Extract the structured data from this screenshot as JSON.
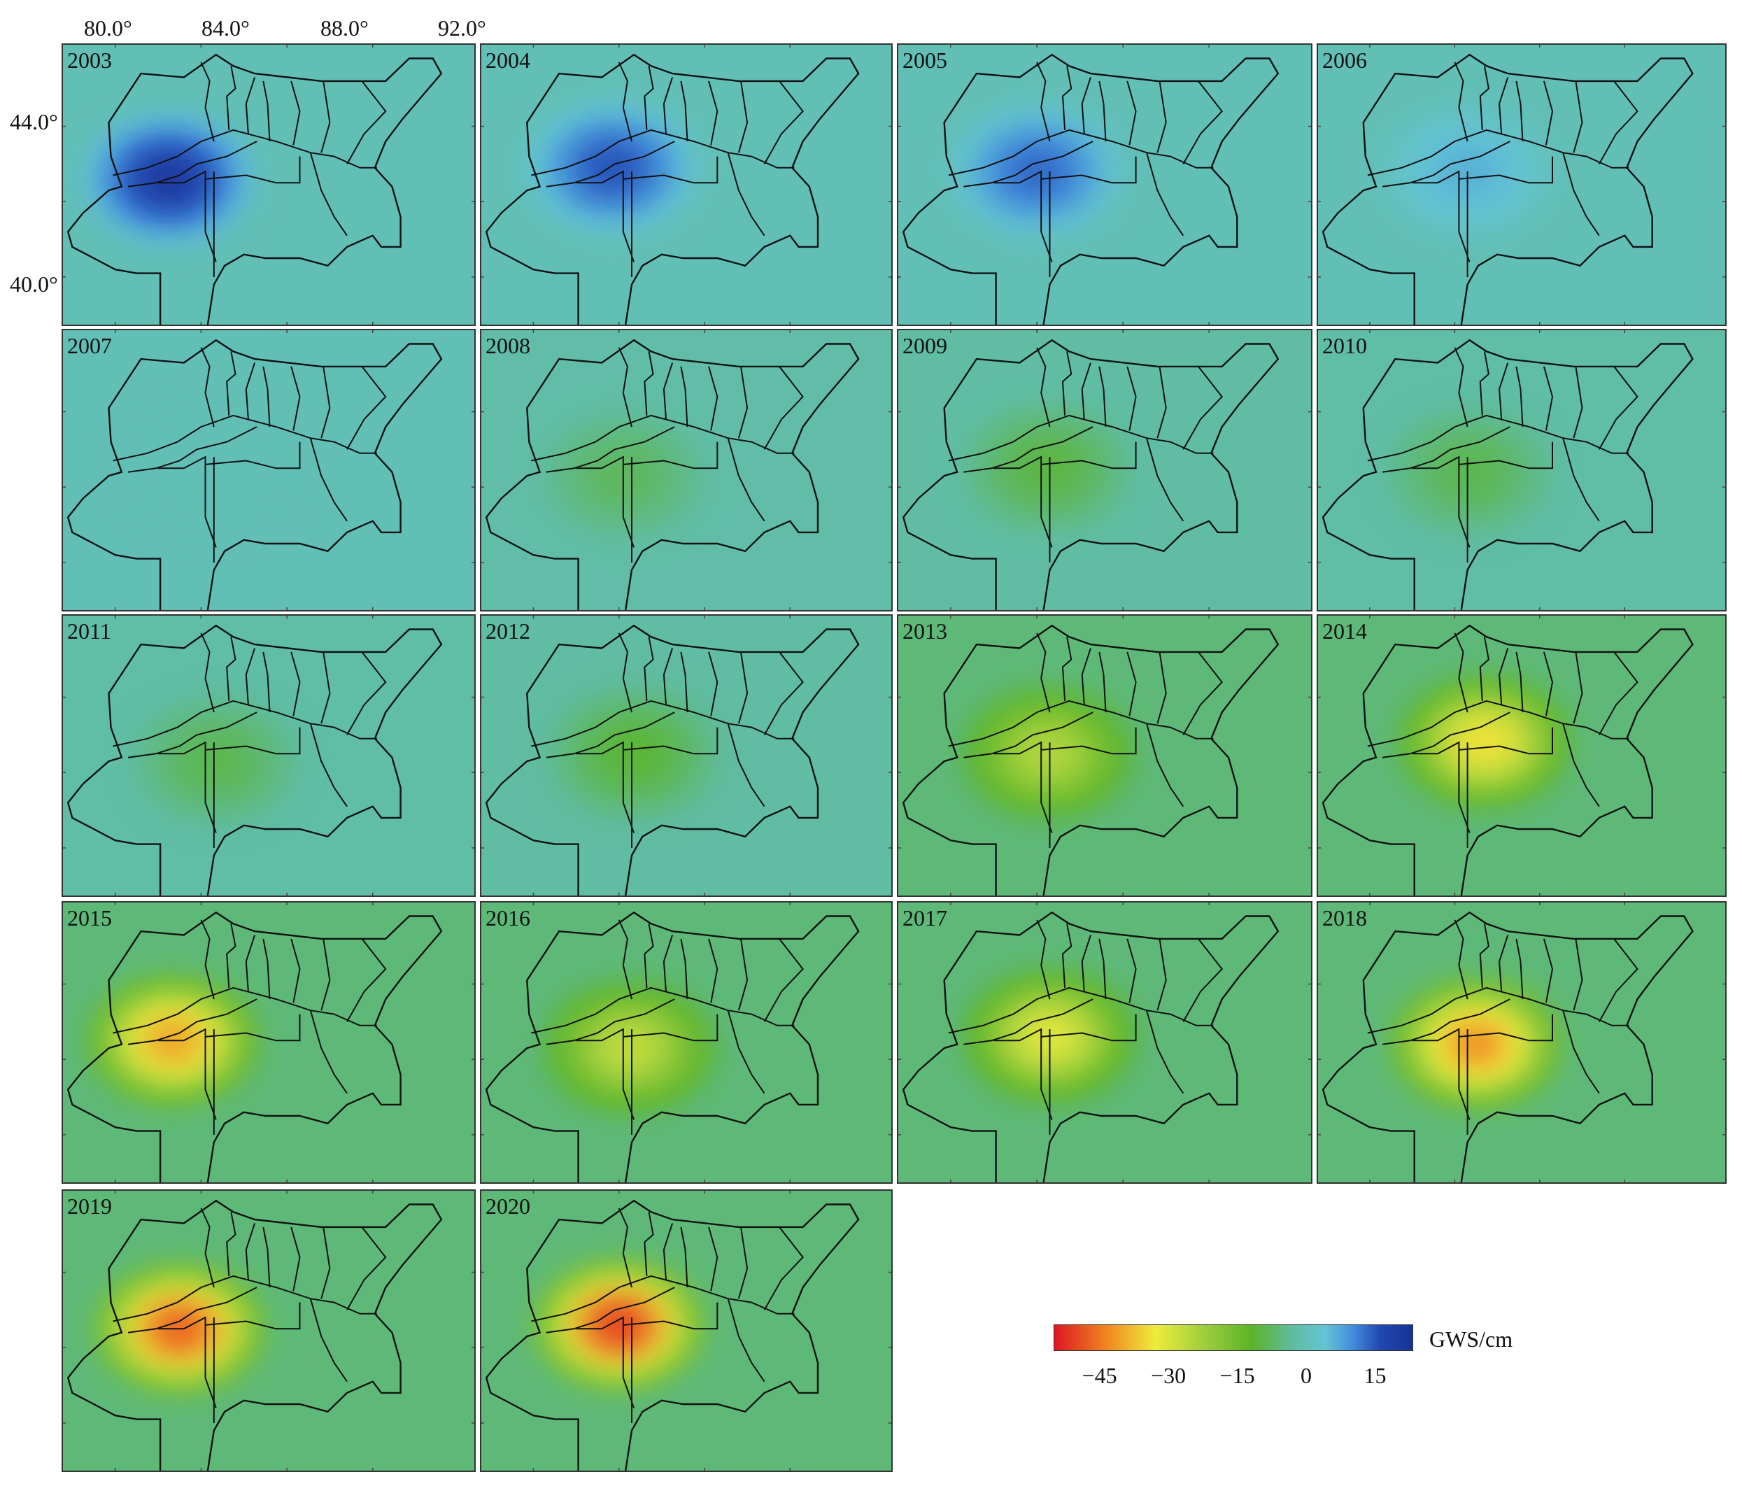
{
  "axes": {
    "lon_labels": [
      "80.0°",
      "84.0°",
      "88.0°",
      "92.0°"
    ],
    "lat_labels": [
      "44.0°",
      "40.0°"
    ]
  },
  "panels": [
    {
      "year": "2003",
      "anomaly": [
        {
          "lon": 82.5,
          "lat": 42.6,
          "value": 20
        }
      ]
    },
    {
      "year": "2004",
      "anomaly": [
        {
          "lon": 83.7,
          "lat": 42.9,
          "value": 15
        }
      ]
    },
    {
      "year": "2005",
      "anomaly": [
        {
          "lon": 84.0,
          "lat": 42.8,
          "value": 13
        }
      ]
    },
    {
      "year": "2006",
      "anomaly": [
        {
          "lon": 84.6,
          "lat": 42.8,
          "value": 6
        }
      ]
    },
    {
      "year": "2007",
      "anomaly": [
        {
          "lon": 84.5,
          "lat": 42.5,
          "value": 0
        }
      ]
    },
    {
      "year": "2008",
      "anomaly": [
        {
          "lon": 84.2,
          "lat": 42.3,
          "value": -8
        }
      ]
    },
    {
      "year": "2009",
      "anomaly": [
        {
          "lon": 84.5,
          "lat": 42.5,
          "value": -10
        }
      ]
    },
    {
      "year": "2010",
      "anomaly": [
        {
          "lon": 84.7,
          "lat": 42.4,
          "value": -9
        }
      ]
    },
    {
      "year": "2011",
      "anomaly": [
        {
          "lon": 84.7,
          "lat": 42.3,
          "value": -9
        }
      ]
    },
    {
      "year": "2012",
      "anomaly": [
        {
          "lon": 84.7,
          "lat": 42.5,
          "value": -11
        }
      ]
    },
    {
      "year": "2013",
      "anomaly": [
        {
          "lon": 84.5,
          "lat": 42.5,
          "value": -25
        }
      ]
    },
    {
      "year": "2014",
      "anomaly": [
        {
          "lon": 85.4,
          "lat": 42.8,
          "value": -34
        }
      ]
    },
    {
      "year": "2015",
      "anomaly": [
        {
          "lon": 82.7,
          "lat": 42.5,
          "value": -40
        }
      ]
    },
    {
      "year": "2016",
      "anomaly": [
        {
          "lon": 84.5,
          "lat": 42.3,
          "value": -27
        }
      ]
    },
    {
      "year": "2017",
      "anomaly": [
        {
          "lon": 84.6,
          "lat": 42.6,
          "value": -31
        }
      ]
    },
    {
      "year": "2018",
      "anomaly": [
        {
          "lon": 85.0,
          "lat": 42.4,
          "value": -42
        }
      ]
    },
    {
      "year": "2019",
      "anomaly": [
        {
          "lon": 83.0,
          "lat": 42.5,
          "value": -47
        }
      ]
    },
    {
      "year": "2020",
      "anomaly": [
        {
          "lon": 84.0,
          "lat": 42.6,
          "value": -50
        }
      ]
    }
  ],
  "legend": {
    "unit": "GWS/cm",
    "ticks": [
      "−45",
      "−30",
      "−15",
      "0",
      "15"
    ],
    "range": [
      -55,
      23
    ]
  }
}
